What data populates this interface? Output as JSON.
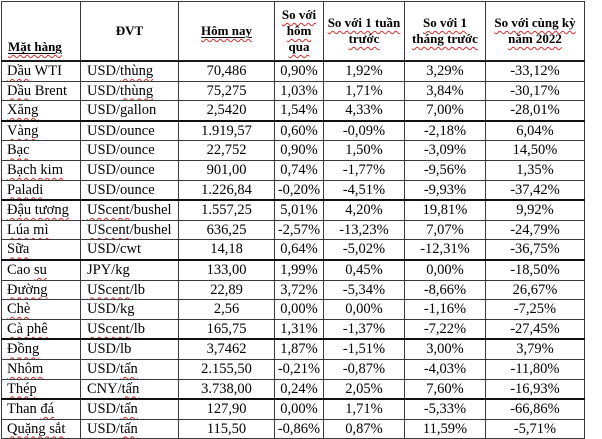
{
  "colors": {
    "background": "#ffffff",
    "text": "#000000",
    "border": "#3a3a3a",
    "spellcheck_underline": "#d03030"
  },
  "table": {
    "headers": [
      {
        "name": "col-header-commodity",
        "label": "Mặt hàng",
        "wavy": true,
        "underline": true
      },
      {
        "name": "col-header-unit",
        "label": "ĐVT",
        "wavy": false,
        "underline": false
      },
      {
        "name": "col-header-today",
        "label": "Hôm nay",
        "wavy": true,
        "underline": true
      },
      {
        "name": "col-header-vs-yesterday",
        "label": "So với hôm qua",
        "wavy": true,
        "underline": false
      },
      {
        "name": "col-header-vs-week",
        "label": "So với 1 tuần trước",
        "wavy": true,
        "underline": false
      },
      {
        "name": "col-header-vs-month",
        "label": "So với 1 tháng trước",
        "wavy": true,
        "underline": false
      },
      {
        "name": "col-header-vs-2022",
        "label": "So với cùng kỳ năm 2022",
        "wavy": true,
        "underline": false
      }
    ],
    "rows": [
      {
        "name": "Dầu WTI",
        "name_wavy": "Dầu",
        "unit": "USD/thùng",
        "unit_wavy": "thùng",
        "today": "70,486",
        "vs_yesterday": "0,90%",
        "vs_week": "1,92%",
        "vs_month": "3,29%",
        "vs_2022": "-33,12%",
        "thick_below": false
      },
      {
        "name": "Dầu Brent",
        "name_wavy": "Dầu",
        "unit": "USD/thùng",
        "unit_wavy": "thùng",
        "today": "75,275",
        "vs_yesterday": "1,03%",
        "vs_week": "1,71%",
        "vs_month": "3,84%",
        "vs_2022": "-30,17%",
        "thick_below": false
      },
      {
        "name": "Xăng",
        "name_wavy": "Xăng",
        "unit": "USD/gallon",
        "unit_wavy": "",
        "today": "2,5420",
        "vs_yesterday": "1,54%",
        "vs_week": "4,33%",
        "vs_month": "7,00%",
        "vs_2022": "-28,01%",
        "thick_below": true
      },
      {
        "name": "Vàng",
        "name_wavy": "Vàng",
        "unit": "USD/ounce",
        "unit_wavy": "",
        "today": "1.919,57",
        "vs_yesterday": "0,60%",
        "vs_week": "-0,09%",
        "vs_month": "-2,18%",
        "vs_2022": "6,04%",
        "thick_below": false
      },
      {
        "name": "Bạc",
        "name_wavy": "Bạc",
        "unit": "USD/ounce",
        "unit_wavy": "",
        "today": "22,752",
        "vs_yesterday": "0,90%",
        "vs_week": "1,50%",
        "vs_month": "-3,09%",
        "vs_2022": "14,50%",
        "thick_below": false
      },
      {
        "name": "Bạch kim",
        "name_wavy": "Bạch kim",
        "unit": "USD/ounce",
        "unit_wavy": "",
        "today": "901,00",
        "vs_yesterday": "0,74%",
        "vs_week": "-1,77%",
        "vs_month": "-9,56%",
        "vs_2022": "1,35%",
        "thick_below": false
      },
      {
        "name": "Paladi",
        "name_wavy": "Paladi",
        "unit": "USD/ounce",
        "unit_wavy": "",
        "today": "1.226,84",
        "vs_yesterday": "-0,20%",
        "vs_week": "-4,51%",
        "vs_month": "-9,93%",
        "vs_2022": "-37,42%",
        "thick_below": true
      },
      {
        "name": "Đậu tương",
        "name_wavy": "Đậu tương",
        "unit": "UScent/bushel",
        "unit_wavy": "UScent",
        "today": "1.557,25",
        "vs_yesterday": "5,01%",
        "vs_week": "4,20%",
        "vs_month": "19,81%",
        "vs_2022": "9,92%",
        "thick_below": false
      },
      {
        "name": "Lúa mì",
        "name_wavy": "Lúa mì",
        "unit": "UScent/bushel",
        "unit_wavy": "UScent",
        "today": "636,25",
        "vs_yesterday": "-2,57%",
        "vs_week": "-13,23%",
        "vs_month": "7,07%",
        "vs_2022": "-24,79%",
        "thick_below": false
      },
      {
        "name": "Sữa",
        "name_wavy": "Sữa",
        "unit": "USD/cwt",
        "unit_wavy": "",
        "today": "14,18",
        "vs_yesterday": "0,64%",
        "vs_week": "-5,02%",
        "vs_month": "-12,31%",
        "vs_2022": "-36,75%",
        "thick_below": true
      },
      {
        "name": "Cao su",
        "name_wavy": "su",
        "unit": "JPY/kg",
        "unit_wavy": "",
        "today": "133,00",
        "vs_yesterday": "1,99%",
        "vs_week": "0,45%",
        "vs_month": "0,00%",
        "vs_2022": "-18,50%",
        "thick_below": false
      },
      {
        "name": "Đường",
        "name_wavy": "Đường",
        "unit": "UScent/lb",
        "unit_wavy": "UScent",
        "today": "22,89",
        "vs_yesterday": "3,72%",
        "vs_week": "-5,34%",
        "vs_month": "-8,66%",
        "vs_2022": "26,67%",
        "thick_below": false
      },
      {
        "name": "Chè",
        "name_wavy": "Chè",
        "unit": "USD/kg",
        "unit_wavy": "",
        "today": "2,56",
        "vs_yesterday": "0,00%",
        "vs_week": "0,00%",
        "vs_month": "-1,16%",
        "vs_2022": "-7,25%",
        "thick_below": false
      },
      {
        "name": "Cà phê",
        "name_wavy": "Cà phê",
        "unit": "UScent/lb",
        "unit_wavy": "UScent",
        "today": "165,75",
        "vs_yesterday": "1,31%",
        "vs_week": "-1,37%",
        "vs_month": "-7,22%",
        "vs_2022": "-27,45%",
        "thick_below": true
      },
      {
        "name": "Đồng",
        "name_wavy": "Đồng",
        "unit": "USD/lb",
        "unit_wavy": "",
        "today": "3,7462",
        "vs_yesterday": "1,87%",
        "vs_week": "-1,51%",
        "vs_month": "3,00%",
        "vs_2022": "3,79%",
        "thick_below": false
      },
      {
        "name": "Nhôm",
        "name_wavy": "Nhôm",
        "unit": "USD/tấn",
        "unit_wavy": "tấn",
        "today": "2.155,50",
        "vs_yesterday": "-0,21%",
        "vs_week": "-0,87%",
        "vs_month": "-4,03%",
        "vs_2022": "-11,80%",
        "thick_below": false
      },
      {
        "name": "Thép",
        "name_wavy": "Thép",
        "unit": "CNY/tấn",
        "unit_wavy": "tấn",
        "today": "3.738,00",
        "vs_yesterday": "0,24%",
        "vs_week": "2,05%",
        "vs_month": "7,60%",
        "vs_2022": "-16,93%",
        "thick_below": true
      },
      {
        "name": "Than đá",
        "name_wavy": "đá",
        "unit": "USD/tấn",
        "unit_wavy": "tấn",
        "today": "127,90",
        "vs_yesterday": "0,00%",
        "vs_week": "1,71%",
        "vs_month": "-5,33%",
        "vs_2022": "-66,86%",
        "thick_below": false
      },
      {
        "name": "Quặng sắt",
        "name_wavy": "Quặng sắt",
        "unit": "USD/tấn",
        "unit_wavy": "tấn",
        "today": "115,50",
        "vs_yesterday": "-0,86%",
        "vs_week": "0,87%",
        "vs_month": "11,59%",
        "vs_2022": "-5,71%",
        "thick_below": false
      }
    ]
  }
}
